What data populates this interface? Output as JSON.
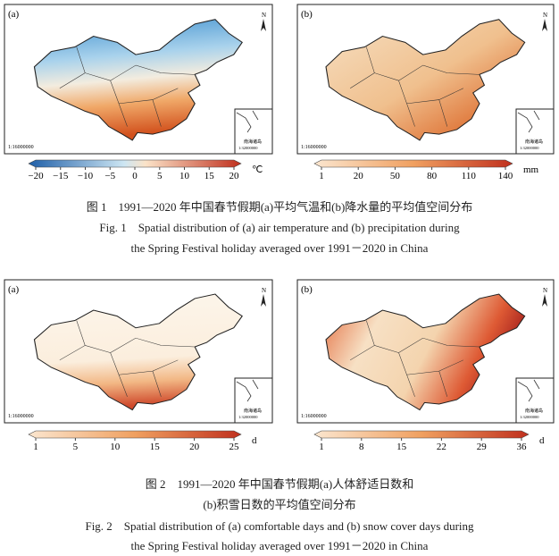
{
  "figure1": {
    "panels": [
      {
        "label": "(a)",
        "north": "N",
        "scale": "1:16000000",
        "inset_label": "南海诸岛",
        "inset_scale": "1:32000000"
      },
      {
        "label": "(b)",
        "north": "N",
        "scale": "1:16000000",
        "inset_label": "南海诸岛",
        "inset_scale": "1:32000000"
      }
    ],
    "colorbars": [
      {
        "ticks": [
          "−20",
          "−15",
          "−10",
          "−5",
          "0",
          "5",
          "10",
          "15",
          "20"
        ],
        "unit": "℃"
      },
      {
        "ticks": [
          "1",
          "20",
          "50",
          "80",
          "110",
          "140"
        ],
        "unit": "mm"
      }
    ],
    "caption_cn": "图 1　1991—2020 年中国春节假期(a)平均气温和(b)降水量的平均值空间分布",
    "caption_en": [
      "Fig. 1　Spatial distribution of (a) air temperature and (b) precipitation during",
      "the Spring Festival holiday averaged over 1991－2020 in China"
    ]
  },
  "figure2": {
    "panels": [
      {
        "label": "(a)",
        "north": "N",
        "scale": "1:16000000",
        "inset_label": "南海诸岛",
        "inset_scale": "1:32000000"
      },
      {
        "label": "(b)",
        "north": "N",
        "scale": "1:16000000",
        "inset_label": "南海诸岛",
        "inset_scale": "1:32000000"
      }
    ],
    "colorbars": [
      {
        "ticks": [
          "1",
          "5",
          "10",
          "15",
          "20",
          "25"
        ],
        "unit": "d"
      },
      {
        "ticks": [
          "1",
          "8",
          "15",
          "22",
          "29",
          "36"
        ],
        "unit": "d"
      }
    ],
    "caption_cn": [
      "图 2　1991—2020 年中国春节假期(a)人体舒适日数和",
      "(b)积雪日数的平均值空间分布"
    ],
    "caption_en": [
      "Fig. 2　Spatial distribution of (a) comfortable days and (b) snow cover days during",
      "the Spring Festival holiday averaged over 1991－2020 in China"
    ]
  }
}
